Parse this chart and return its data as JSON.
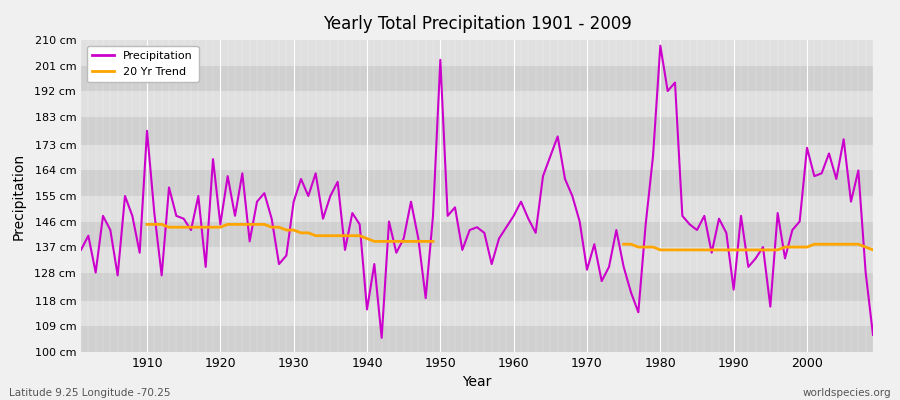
{
  "title": "Yearly Total Precipitation 1901 - 2009",
  "xlabel": "Year",
  "ylabel": "Precipitation",
  "subtitle": "Latitude 9.25 Longitude -70.25",
  "watermark": "worldspecies.org",
  "ylim": [
    100,
    210
  ],
  "yticks": [
    100,
    109,
    118,
    128,
    137,
    146,
    155,
    164,
    173,
    183,
    192,
    201,
    210
  ],
  "ytick_labels": [
    "100 cm",
    "109 cm",
    "118 cm",
    "128 cm",
    "137 cm",
    "146 cm",
    "155 cm",
    "164 cm",
    "173 cm",
    "183 cm",
    "192 cm",
    "201 cm",
    "210 cm"
  ],
  "xlim": [
    1901,
    2009
  ],
  "xticks": [
    1910,
    1920,
    1930,
    1940,
    1950,
    1960,
    1970,
    1980,
    1990,
    2000
  ],
  "precip_color": "#cc00cc",
  "trend_color": "#ffa500",
  "fig_bg_color": "#f0f0f0",
  "plot_bg_color": "#e0e0e0",
  "band_color_dark": "#d0d0d0",
  "band_color_light": "#e0e0e0",
  "legend_bg": "#ffffff",
  "years": [
    1901,
    1902,
    1903,
    1904,
    1905,
    1906,
    1907,
    1908,
    1909,
    1910,
    1911,
    1912,
    1913,
    1914,
    1915,
    1916,
    1917,
    1918,
    1919,
    1920,
    1921,
    1922,
    1923,
    1924,
    1925,
    1926,
    1927,
    1928,
    1929,
    1930,
    1931,
    1932,
    1933,
    1934,
    1935,
    1936,
    1937,
    1938,
    1939,
    1940,
    1941,
    1942,
    1943,
    1944,
    1945,
    1946,
    1947,
    1948,
    1949,
    1950,
    1951,
    1952,
    1953,
    1954,
    1955,
    1956,
    1957,
    1958,
    1959,
    1960,
    1961,
    1962,
    1963,
    1964,
    1965,
    1966,
    1967,
    1968,
    1969,
    1970,
    1971,
    1972,
    1973,
    1974,
    1975,
    1976,
    1977,
    1978,
    1979,
    1980,
    1981,
    1982,
    1983,
    1984,
    1985,
    1986,
    1987,
    1988,
    1989,
    1990,
    1991,
    1992,
    1993,
    1994,
    1995,
    1996,
    1997,
    1998,
    1999,
    2000,
    2001,
    2002,
    2003,
    2004,
    2005,
    2006,
    2007,
    2008,
    2009
  ],
  "precipitation": [
    136,
    141,
    128,
    148,
    143,
    127,
    155,
    148,
    135,
    178,
    149,
    127,
    158,
    148,
    147,
    143,
    155,
    130,
    168,
    145,
    162,
    148,
    163,
    139,
    153,
    156,
    147,
    131,
    134,
    153,
    161,
    155,
    163,
    147,
    155,
    160,
    136,
    149,
    145,
    115,
    131,
    105,
    146,
    135,
    140,
    153,
    140,
    119,
    148,
    203,
    148,
    151,
    136,
    143,
    144,
    142,
    131,
    140,
    144,
    148,
    153,
    147,
    142,
    162,
    169,
    176,
    161,
    155,
    146,
    129,
    138,
    125,
    130,
    143,
    130,
    121,
    114,
    145,
    169,
    208,
    192,
    195,
    148,
    145,
    143,
    148,
    135,
    147,
    142,
    122,
    148,
    130,
    133,
    137,
    116,
    149,
    133,
    143,
    146,
    172,
    162,
    163,
    170,
    161,
    175,
    153,
    164,
    128,
    106
  ],
  "trend_seg1_years": [
    1910,
    1911,
    1912,
    1913,
    1914,
    1915,
    1916,
    1917,
    1918,
    1919,
    1920,
    1921,
    1922,
    1923,
    1924,
    1925,
    1926,
    1927,
    1928,
    1929,
    1930,
    1931,
    1932,
    1933,
    1934,
    1935,
    1936,
    1937,
    1938,
    1939,
    1940,
    1941,
    1942,
    1943,
    1944,
    1945,
    1946,
    1947,
    1948,
    1949
  ],
  "trend_seg1_vals": [
    145,
    145,
    145,
    144,
    144,
    144,
    144,
    144,
    144,
    144,
    144,
    145,
    145,
    145,
    145,
    145,
    145,
    144,
    144,
    143,
    143,
    142,
    142,
    141,
    141,
    141,
    141,
    141,
    141,
    141,
    140,
    139,
    139,
    139,
    139,
    139,
    139,
    139,
    139,
    139
  ],
  "trend_seg2_years": [
    1975,
    1976,
    1977,
    1978,
    1979,
    1980,
    1981,
    1982,
    1983,
    1984,
    1985,
    1986,
    1987,
    1988,
    1989,
    1990,
    1991,
    1992,
    1993,
    1994,
    1995,
    1996,
    1997,
    1998,
    1999,
    2000,
    2001,
    2002,
    2003,
    2004,
    2005,
    2006,
    2007,
    2008,
    2009
  ],
  "trend_seg2_vals": [
    138,
    138,
    137,
    137,
    137,
    136,
    136,
    136,
    136,
    136,
    136,
    136,
    136,
    136,
    136,
    136,
    136,
    136,
    136,
    136,
    136,
    136,
    137,
    137,
    137,
    137,
    138,
    138,
    138,
    138,
    138,
    138,
    138,
    137,
    136
  ]
}
